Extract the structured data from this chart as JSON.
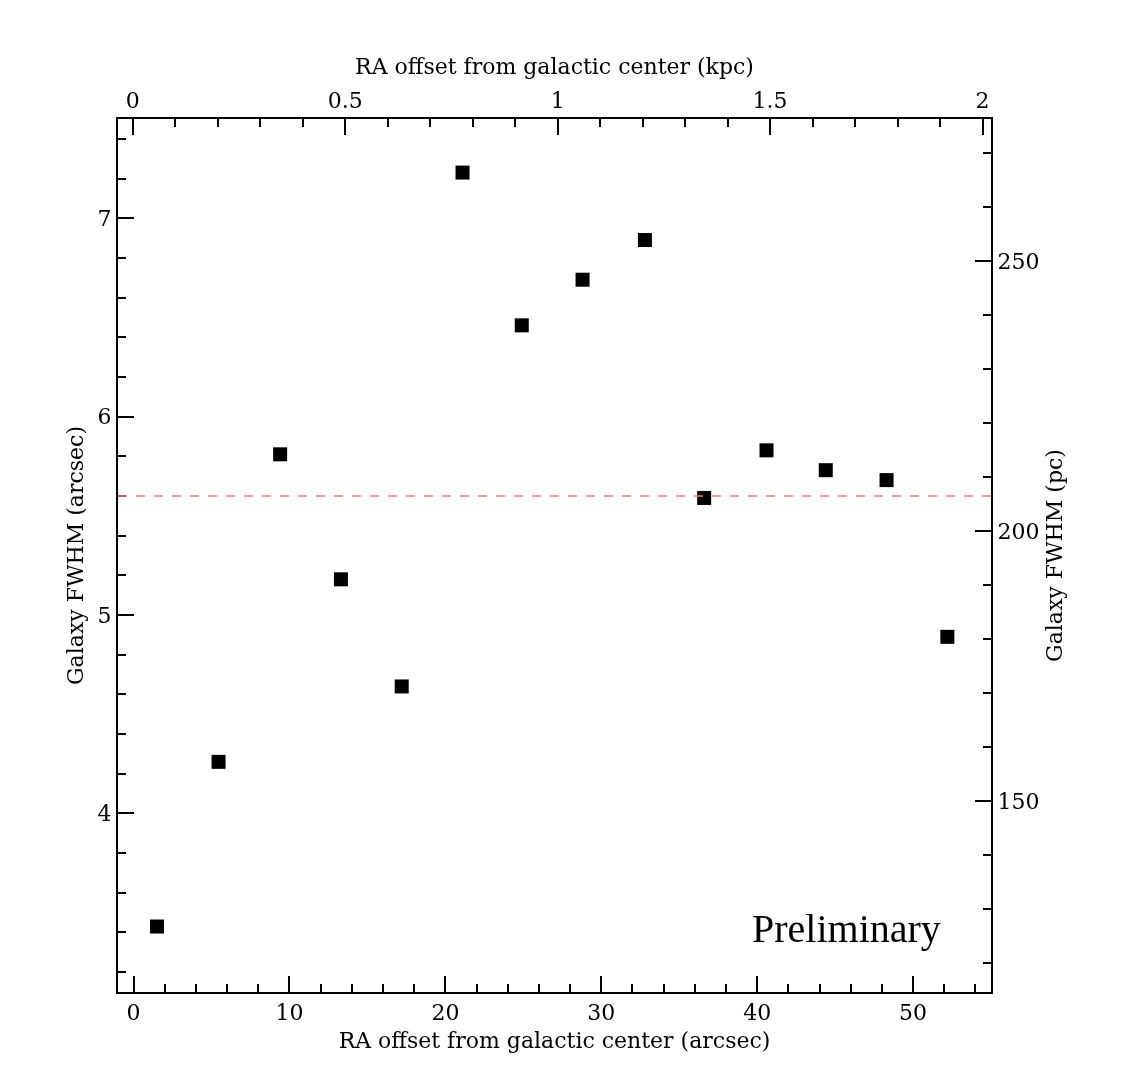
{
  "chart_data": {
    "type": "scatter",
    "xlabel": "RA offset from galactic center (arcsec)",
    "ylabel": "Galaxy FWHM (arcsec)",
    "y2label": "Galaxy FWHM (pc)",
    "x2label": "RA offset from galactic center (kpc)",
    "marker": "square",
    "series": [
      {
        "color": "#000000",
        "x": [
          1.5,
          5.45,
          9.4,
          13.3,
          17.2,
          21.1,
          24.9,
          28.8,
          32.8,
          36.6,
          40.6,
          44.4,
          48.3,
          52.2
        ],
        "values": [
          3.43,
          4.26,
          5.81,
          5.18,
          4.64,
          7.23,
          6.46,
          6.69,
          6.89,
          5.59,
          5.83,
          5.73,
          5.68,
          4.89
        ]
      }
    ],
    "ref_lines": [
      {
        "axis": "y",
        "value": 5.6,
        "color": "#f08080",
        "line_style": "dashed"
      }
    ],
    "annotations": [
      "Preliminary"
    ],
    "xlim": [
      -1,
      55
    ],
    "ylim": [
      3.1,
      7.5
    ],
    "x2lim": [
      -0.035,
      2.02
    ],
    "y2lim": [
      114.6,
      276.3
    ],
    "xticks": [
      0,
      {
        "value": 2,
        "label": null
      },
      {
        "value": 4,
        "label": null
      },
      {
        "value": 6,
        "label": null
      },
      {
        "value": 8,
        "label": null
      },
      10,
      {
        "value": 12,
        "label": null
      },
      {
        "value": 14,
        "label": null
      },
      {
        "value": 16,
        "label": null
      },
      {
        "value": 18,
        "label": null
      },
      20,
      {
        "value": 22,
        "label": null
      },
      {
        "value": 24,
        "label": null
      },
      {
        "value": 26,
        "label": null
      },
      {
        "value": 28,
        "label": null
      },
      30,
      {
        "value": 32,
        "label": null
      },
      {
        "value": 34,
        "label": null
      },
      {
        "value": 36,
        "label": null
      },
      {
        "value": 38,
        "label": null
      },
      40,
      {
        "value": 42,
        "label": null
      },
      {
        "value": 44,
        "label": null
      },
      {
        "value": 46,
        "label": null
      },
      {
        "value": 48,
        "label": null
      },
      50,
      {
        "value": 52,
        "label": null
      },
      {
        "value": 54,
        "label": null
      }
    ],
    "x2ticks": [
      0,
      {
        "value": 0.1,
        "label": null
      },
      {
        "value": 0.2,
        "label": null
      },
      {
        "value": 0.3,
        "label": null
      },
      {
        "value": 0.4,
        "label": null
      },
      0.5,
      {
        "value": 0.6,
        "label": null
      },
      {
        "value": 0.7,
        "label": null
      },
      {
        "value": 0.8,
        "label": null
      },
      {
        "value": 0.9,
        "label": null
      },
      1,
      {
        "value": 1.1,
        "label": null
      },
      {
        "value": 1.2,
        "label": null
      },
      {
        "value": 1.3,
        "label": null
      },
      {
        "value": 1.4,
        "label": null
      },
      1.5,
      {
        "value": 1.6,
        "label": null
      },
      {
        "value": 1.7,
        "label": null
      },
      {
        "value": 1.8,
        "label": null
      },
      {
        "value": 1.9,
        "label": null
      },
      2
    ],
    "yticks": [
      {
        "value": 3.2,
        "label": null
      },
      {
        "value": 3.4,
        "label": null
      },
      {
        "value": 3.6,
        "label": null
      },
      {
        "value": 3.8,
        "label": null
      },
      4,
      {
        "value": 4.2,
        "label": null
      },
      {
        "value": 4.4,
        "label": null
      },
      {
        "value": 4.6,
        "label": null
      },
      {
        "value": 4.8,
        "label": null
      },
      5,
      {
        "value": 5.2,
        "label": null
      },
      {
        "value": 5.4,
        "label": null
      },
      {
        "value": 5.6,
        "label": null
      },
      {
        "value": 5.8,
        "label": null
      },
      6,
      {
        "value": 6.2,
        "label": null
      },
      {
        "value": 6.4,
        "label": null
      },
      {
        "value": 6.6,
        "label": null
      },
      {
        "value": 6.8,
        "label": null
      },
      7,
      {
        "value": 7.2,
        "label": null
      },
      {
        "value": 7.4,
        "label": null
      }
    ],
    "y2ticks": [
      {
        "value": 120,
        "label": null
      },
      {
        "value": 130,
        "label": null
      },
      {
        "value": 140,
        "label": null
      },
      150,
      {
        "value": 160,
        "label": null
      },
      {
        "value": 170,
        "label": null
      },
      {
        "value": 180,
        "label": null
      },
      {
        "value": 190,
        "label": null
      },
      200,
      {
        "value": 210,
        "label": null
      },
      {
        "value": 220,
        "label": null
      },
      {
        "value": 230,
        "label": null
      },
      {
        "value": 240,
        "label": null
      },
      250,
      {
        "value": 260,
        "label": null
      },
      {
        "value": 270,
        "label": null
      }
    ]
  }
}
